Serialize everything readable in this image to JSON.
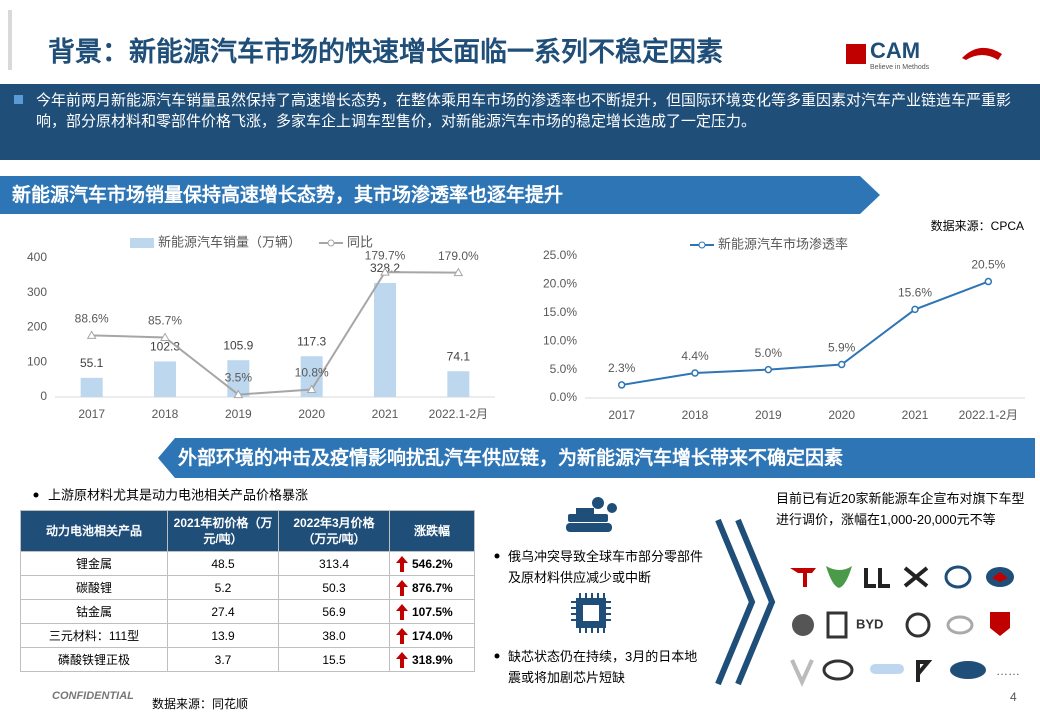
{
  "header": {
    "title": "背景：新能源汽车市场的快速增长面临一系列不稳定因素",
    "logo": "CAM",
    "logo_tagline": "Believe in Methods"
  },
  "intro": "今年前两月新能源汽车销量虽然保持了高速增长态势，在整体乘用车市场的渗透率也不断提升，但国际环境变化等多重因素对汽车产业链造车严重影响，部分原材料和零部件价格飞涨，多家车企上调车型售价，对新能源汽车市场的稳定增长造成了一定压力。",
  "section1": "新能源汽车市场销量保持高速增长态势，其市场渗透率也逐年提升",
  "source1": "数据来源：CPCA",
  "chart_data": [
    {
      "type": "bar",
      "categories": [
        "2017",
        "2018",
        "2019",
        "2020",
        "2021",
        "2022.1-2月"
      ],
      "series": [
        {
          "name": "新能源汽车销量（万辆）",
          "color": "#bdd7ee",
          "values": [
            55.1,
            102.3,
            105.9,
            117.3,
            328.2,
            74.1
          ]
        },
        {
          "name": "同比",
          "type": "line",
          "axis": "y2",
          "color": "#a6a6a6",
          "values": [
            88.6,
            85.7,
            3.5,
            10.8,
            179.7,
            179.0
          ],
          "value_labels": [
            "88.6%",
            "85.7%",
            "3.5%",
            "10.8%",
            "179.7%",
            "179.0%"
          ]
        }
      ],
      "ylim": [
        0,
        400
      ],
      "yticks": [
        0,
        100,
        200,
        300,
        400
      ],
      "y2lim": [
        0,
        200
      ],
      "grid": false,
      "legend": "top"
    },
    {
      "type": "line",
      "categories": [
        "2017",
        "2018",
        "2019",
        "2020",
        "2021",
        "2022.1-2月"
      ],
      "series": [
        {
          "name": "新能源汽车市场渗透率",
          "color": "#2e75b6",
          "values": [
            2.3,
            4.4,
            5.0,
            5.9,
            15.6,
            20.5
          ],
          "value_labels": [
            "2.3%",
            "4.4%",
            "5.0%",
            "5.9%",
            "15.6%",
            "20.5%"
          ]
        }
      ],
      "ylim": [
        0,
        25
      ],
      "yticks": [
        {
          "value": 0,
          "label": "0.0%"
        },
        {
          "value": 5,
          "label": "5.0%"
        },
        {
          "value": 10,
          "label": "10.0%"
        },
        {
          "value": 15,
          "label": "15.0%"
        },
        {
          "value": 20,
          "label": "20.0%"
        },
        {
          "value": 25,
          "label": "25.0%"
        }
      ],
      "grid": false,
      "legend": "top"
    }
  ],
  "section2": "外部环境的冲击及疫情影响扰乱汽车供应链，为新能源汽车增长带来不确定因素",
  "table_bullet": "上游原材料尤其是动力电池相关产品价格暴涨",
  "table": {
    "header": [
      "动力电池相关产品",
      "2021年初价格（万元/吨）",
      "2022年3月价格（万元/吨）",
      "涨跌幅"
    ],
    "rows": [
      [
        "锂金属",
        "48.5",
        "313.4",
        "546.2%"
      ],
      [
        "碳酸锂",
        "5.2",
        "50.3",
        "876.7%"
      ],
      [
        "钴金属",
        "27.4",
        "56.9",
        "107.5%"
      ],
      [
        "三元材料：111型",
        "13.9",
        "38.0",
        "174.0%"
      ],
      [
        "磷酸铁锂正极",
        "3.7",
        "15.5",
        "318.9%"
      ]
    ]
  },
  "mid_bullets": [
    "俄乌冲突导致全球车市部分零部件及原材料供应减少或中断",
    "缺芯状态仍在持续，3月的日本地震或将加剧芯片短缺"
  ],
  "right_text": "目前已有近20家新能源车企宣布对旗下车型进行调价，涨幅在1,000-20,000元不等",
  "more": "……",
  "footer": {
    "confidential": "CONFIDENTIAL",
    "source": "数据来源：同花顺",
    "page": "4"
  }
}
